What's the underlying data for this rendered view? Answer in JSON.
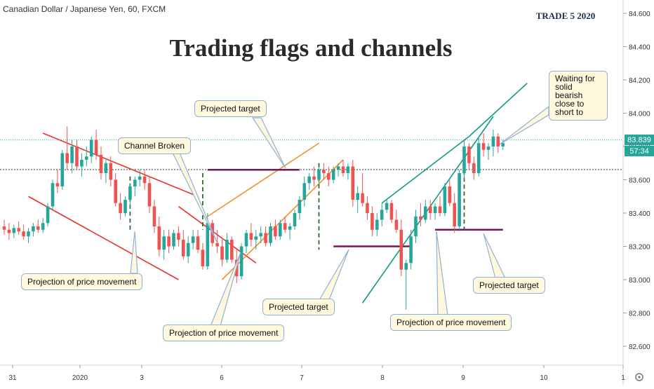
{
  "header": {
    "symbol": "Canadian Dollar / Japanese Yen, 60, FXCM",
    "title": "Trading flags and channels",
    "watermark": "TRADE 5 2020"
  },
  "price_tags": {
    "last_price": "83.839",
    "countdown": "57:34"
  },
  "colors": {
    "up": "#26a69a",
    "down": "#ef5350",
    "red_channel": "#e8312c",
    "orange_flag": "#f28e2b",
    "teal_channel": "#0f9b87",
    "target_line": "#7b1556",
    "projection": "#2e6b2e",
    "callout_bg": "#fff8dc",
    "callout_border": "#8fb0d8"
  },
  "chart_data": {
    "type": "candlestick",
    "y_axis": {
      "ticks": [
        "84.600",
        "84.400",
        "84.200",
        "84.000",
        "83.800",
        "83.600",
        "83.400",
        "83.200",
        "83.000",
        "82.800",
        "82.600"
      ],
      "range": [
        82.5,
        84.7
      ]
    },
    "x_axis": {
      "ticks": [
        "31",
        "2020",
        "3",
        "6",
        "7",
        "8",
        "9",
        "10",
        "1"
      ]
    },
    "series": [
      {
        "o": 83.32,
        "h": 83.36,
        "l": 83.27,
        "c": 83.3
      },
      {
        "o": 83.3,
        "h": 83.34,
        "l": 83.24,
        "c": 83.28
      },
      {
        "o": 83.28,
        "h": 83.33,
        "l": 83.25,
        "c": 83.31
      },
      {
        "o": 83.31,
        "h": 83.35,
        "l": 83.27,
        "c": 83.29
      },
      {
        "o": 83.29,
        "h": 83.33,
        "l": 83.24,
        "c": 83.26
      },
      {
        "o": 83.26,
        "h": 83.31,
        "l": 83.22,
        "c": 83.29
      },
      {
        "o": 83.29,
        "h": 83.34,
        "l": 83.26,
        "c": 83.32
      },
      {
        "o": 83.32,
        "h": 83.36,
        "l": 83.28,
        "c": 83.3
      },
      {
        "o": 83.3,
        "h": 83.37,
        "l": 83.28,
        "c": 83.34
      },
      {
        "o": 83.34,
        "h": 83.46,
        "l": 83.32,
        "c": 83.44
      },
      {
        "o": 83.44,
        "h": 83.6,
        "l": 83.42,
        "c": 83.58
      },
      {
        "o": 83.58,
        "h": 83.66,
        "l": 83.52,
        "c": 83.56
      },
      {
        "o": 83.56,
        "h": 83.78,
        "l": 83.54,
        "c": 83.76
      },
      {
        "o": 83.76,
        "h": 83.92,
        "l": 83.66,
        "c": 83.7
      },
      {
        "o": 83.7,
        "h": 83.84,
        "l": 83.64,
        "c": 83.8
      },
      {
        "o": 83.8,
        "h": 83.84,
        "l": 83.66,
        "c": 83.68
      },
      {
        "o": 83.68,
        "h": 83.76,
        "l": 83.62,
        "c": 83.72
      },
      {
        "o": 83.72,
        "h": 83.8,
        "l": 83.68,
        "c": 83.74
      },
      {
        "o": 83.74,
        "h": 83.86,
        "l": 83.7,
        "c": 83.84
      },
      {
        "o": 83.84,
        "h": 83.9,
        "l": 83.72,
        "c": 83.75
      },
      {
        "o": 83.75,
        "h": 83.8,
        "l": 83.6,
        "c": 83.64
      },
      {
        "o": 83.64,
        "h": 83.72,
        "l": 83.58,
        "c": 83.7
      },
      {
        "o": 83.7,
        "h": 83.74,
        "l": 83.56,
        "c": 83.6
      },
      {
        "o": 83.6,
        "h": 83.64,
        "l": 83.44,
        "c": 83.46
      },
      {
        "o": 83.46,
        "h": 83.52,
        "l": 83.36,
        "c": 83.4
      },
      {
        "o": 83.4,
        "h": 83.5,
        "l": 83.38,
        "c": 83.48
      },
      {
        "o": 83.48,
        "h": 83.58,
        "l": 83.44,
        "c": 83.56
      },
      {
        "o": 83.56,
        "h": 83.62,
        "l": 83.5,
        "c": 83.6
      },
      {
        "o": 83.6,
        "h": 83.66,
        "l": 83.56,
        "c": 83.62
      },
      {
        "o": 83.62,
        "h": 83.66,
        "l": 83.54,
        "c": 83.58
      },
      {
        "o": 83.58,
        "h": 83.62,
        "l": 83.4,
        "c": 83.44
      },
      {
        "o": 83.44,
        "h": 83.48,
        "l": 83.28,
        "c": 83.32
      },
      {
        "o": 83.32,
        "h": 83.38,
        "l": 83.14,
        "c": 83.18
      },
      {
        "o": 83.18,
        "h": 83.3,
        "l": 83.12,
        "c": 83.26
      },
      {
        "o": 83.26,
        "h": 83.3,
        "l": 83.16,
        "c": 83.2
      },
      {
        "o": 83.2,
        "h": 83.3,
        "l": 83.18,
        "c": 83.28
      },
      {
        "o": 83.28,
        "h": 83.32,
        "l": 83.2,
        "c": 83.24
      },
      {
        "o": 83.24,
        "h": 83.3,
        "l": 83.12,
        "c": 83.14
      },
      {
        "o": 83.14,
        "h": 83.26,
        "l": 83.1,
        "c": 83.22
      },
      {
        "o": 83.22,
        "h": 83.3,
        "l": 83.18,
        "c": 83.26
      },
      {
        "o": 83.26,
        "h": 83.3,
        "l": 83.16,
        "c": 83.18
      },
      {
        "o": 83.18,
        "h": 83.22,
        "l": 83.06,
        "c": 83.08
      },
      {
        "o": 83.08,
        "h": 83.4,
        "l": 83.06,
        "c": 83.34
      },
      {
        "o": 83.34,
        "h": 83.36,
        "l": 83.2,
        "c": 83.22
      },
      {
        "o": 83.22,
        "h": 83.3,
        "l": 83.16,
        "c": 83.2
      },
      {
        "o": 83.2,
        "h": 83.24,
        "l": 83.08,
        "c": 83.12
      },
      {
        "o": 83.12,
        "h": 83.28,
        "l": 83.1,
        "c": 83.24
      },
      {
        "o": 83.24,
        "h": 83.26,
        "l": 83.1,
        "c": 83.12
      },
      {
        "o": 83.12,
        "h": 83.18,
        "l": 82.98,
        "c": 83.02
      },
      {
        "o": 83.02,
        "h": 83.22,
        "l": 83.0,
        "c": 83.2
      },
      {
        "o": 83.2,
        "h": 83.3,
        "l": 83.16,
        "c": 83.28
      },
      {
        "o": 83.28,
        "h": 83.34,
        "l": 83.2,
        "c": 83.24
      },
      {
        "o": 83.24,
        "h": 83.3,
        "l": 83.18,
        "c": 83.26
      },
      {
        "o": 83.26,
        "h": 83.32,
        "l": 83.22,
        "c": 83.28
      },
      {
        "o": 83.28,
        "h": 83.32,
        "l": 83.2,
        "c": 83.22
      },
      {
        "o": 83.22,
        "h": 83.34,
        "l": 83.2,
        "c": 83.32
      },
      {
        "o": 83.32,
        "h": 83.36,
        "l": 83.24,
        "c": 83.26
      },
      {
        "o": 83.26,
        "h": 83.36,
        "l": 83.24,
        "c": 83.34
      },
      {
        "o": 83.34,
        "h": 83.38,
        "l": 83.28,
        "c": 83.3
      },
      {
        "o": 83.3,
        "h": 83.34,
        "l": 83.24,
        "c": 83.32
      },
      {
        "o": 83.32,
        "h": 83.42,
        "l": 83.3,
        "c": 83.4
      },
      {
        "o": 83.4,
        "h": 83.5,
        "l": 83.36,
        "c": 83.48
      },
      {
        "o": 83.48,
        "h": 83.62,
        "l": 83.44,
        "c": 83.58
      },
      {
        "o": 83.58,
        "h": 83.64,
        "l": 83.54,
        "c": 83.62
      },
      {
        "o": 83.62,
        "h": 83.68,
        "l": 83.56,
        "c": 83.6
      },
      {
        "o": 83.6,
        "h": 83.68,
        "l": 83.58,
        "c": 83.66
      },
      {
        "o": 83.66,
        "h": 83.7,
        "l": 83.6,
        "c": 83.64
      },
      {
        "o": 83.64,
        "h": 83.68,
        "l": 83.56,
        "c": 83.6
      },
      {
        "o": 83.6,
        "h": 83.68,
        "l": 83.58,
        "c": 83.66
      },
      {
        "o": 83.66,
        "h": 83.7,
        "l": 83.62,
        "c": 83.68
      },
      {
        "o": 83.68,
        "h": 83.72,
        "l": 83.62,
        "c": 83.64
      },
      {
        "o": 83.64,
        "h": 83.7,
        "l": 83.6,
        "c": 83.68
      },
      {
        "o": 83.68,
        "h": 83.72,
        "l": 83.44,
        "c": 83.48
      },
      {
        "o": 83.48,
        "h": 83.56,
        "l": 83.4,
        "c": 83.52
      },
      {
        "o": 83.52,
        "h": 83.64,
        "l": 83.44,
        "c": 83.46
      },
      {
        "o": 83.46,
        "h": 83.5,
        "l": 83.36,
        "c": 83.4
      },
      {
        "o": 83.4,
        "h": 83.44,
        "l": 83.26,
        "c": 83.3
      },
      {
        "o": 83.3,
        "h": 83.4,
        "l": 83.26,
        "c": 83.36
      },
      {
        "o": 83.36,
        "h": 83.46,
        "l": 83.32,
        "c": 83.42
      },
      {
        "o": 83.42,
        "h": 83.48,
        "l": 83.4,
        "c": 83.46
      },
      {
        "o": 83.46,
        "h": 83.48,
        "l": 83.34,
        "c": 83.36
      },
      {
        "o": 83.36,
        "h": 83.42,
        "l": 83.28,
        "c": 83.3
      },
      {
        "o": 83.3,
        "h": 83.36,
        "l": 83.02,
        "c": 83.06
      },
      {
        "o": 83.06,
        "h": 83.12,
        "l": 82.82,
        "c": 83.1
      },
      {
        "o": 83.1,
        "h": 83.3,
        "l": 83.06,
        "c": 83.26
      },
      {
        "o": 83.26,
        "h": 83.42,
        "l": 83.22,
        "c": 83.38
      },
      {
        "o": 83.38,
        "h": 83.46,
        "l": 83.32,
        "c": 83.36
      },
      {
        "o": 83.36,
        "h": 83.48,
        "l": 83.34,
        "c": 83.44
      },
      {
        "o": 83.44,
        "h": 83.48,
        "l": 83.36,
        "c": 83.4
      },
      {
        "o": 83.4,
        "h": 83.46,
        "l": 83.36,
        "c": 83.44
      },
      {
        "o": 83.44,
        "h": 83.5,
        "l": 83.38,
        "c": 83.4
      },
      {
        "o": 83.4,
        "h": 83.58,
        "l": 83.38,
        "c": 83.56
      },
      {
        "o": 83.56,
        "h": 83.6,
        "l": 83.44,
        "c": 83.46
      },
      {
        "o": 83.46,
        "h": 83.52,
        "l": 83.28,
        "c": 83.32
      },
      {
        "o": 83.32,
        "h": 83.66,
        "l": 83.3,
        "c": 83.64
      },
      {
        "o": 83.64,
        "h": 83.84,
        "l": 83.6,
        "c": 83.8
      },
      {
        "o": 83.8,
        "h": 83.82,
        "l": 83.66,
        "c": 83.7
      },
      {
        "o": 83.7,
        "h": 83.74,
        "l": 83.6,
        "c": 83.64
      },
      {
        "o": 83.64,
        "h": 83.86,
        "l": 83.62,
        "c": 83.82
      },
      {
        "o": 83.82,
        "h": 83.88,
        "l": 83.74,
        "c": 83.78
      },
      {
        "o": 83.78,
        "h": 83.82,
        "l": 83.72,
        "c": 83.8
      },
      {
        "o": 83.8,
        "h": 83.9,
        "l": 83.74,
        "c": 83.86
      },
      {
        "o": 83.86,
        "h": 83.88,
        "l": 83.76,
        "c": 83.8
      },
      {
        "o": 83.8,
        "h": 83.84,
        "l": 83.78,
        "c": 83.82
      }
    ],
    "overlays": {
      "red_channel": [
        [
          8,
          83.88,
          40,
          83.5
        ],
        [
          5,
          83.5,
          36,
          83.0
        ]
      ],
      "red_channel_extension": [
        [
          36,
          83.44,
          52,
          83.1
        ]
      ],
      "orange_flag": [
        [
          42,
          83.38,
          65,
          83.82
        ],
        [
          45,
          83.0,
          70,
          83.72
        ]
      ],
      "teal_channel": [
        [
          78,
          83.46,
          96,
          83.86
        ],
        [
          74,
          82.86,
          101,
          83.98
        ]
      ],
      "teal_channel_extension": [
        [
          96,
          83.86,
          108,
          84.18
        ]
      ],
      "targets": [
        [
          42,
          83.66,
          61,
          83.66
        ],
        [
          68,
          83.2,
          84,
          83.2
        ],
        [
          89,
          83.3,
          103,
          83.3
        ]
      ],
      "projections": [
        [
          26,
          83.62,
          26,
          83.29
        ],
        [
          41,
          83.64,
          41,
          83.3
        ],
        [
          65,
          83.7,
          65,
          83.18
        ],
        [
          95,
          83.74,
          95,
          83.3
        ]
      ]
    }
  },
  "callouts": [
    {
      "id": "callout-channel-broken",
      "text": "Channel Broken"
    },
    {
      "id": "callout-projected-target-1",
      "text": "Projected target"
    },
    {
      "id": "callout-waiting",
      "text": "Waiting for solid bearish close to short to"
    },
    {
      "id": "callout-projection-1",
      "text": "Projection of price movement"
    },
    {
      "id": "callout-projected-target-2",
      "text": "Projected target"
    },
    {
      "id": "callout-projection-2",
      "text": "Projection of price movement"
    },
    {
      "id": "callout-projection-3",
      "text": "Projection of price movement"
    },
    {
      "id": "callout-projected-target-3",
      "text": "Projected target"
    }
  ]
}
